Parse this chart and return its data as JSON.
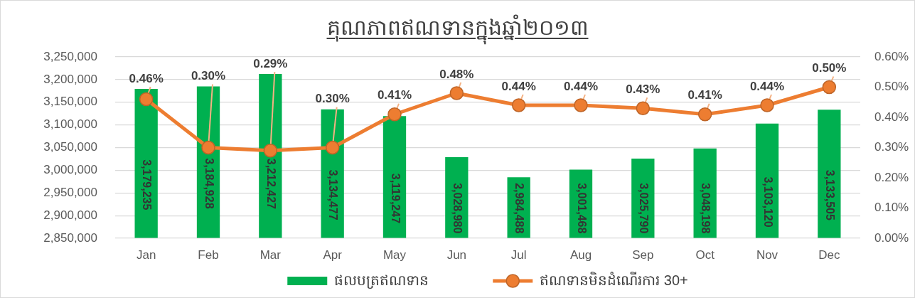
{
  "chart_data": {
    "type": "bar",
    "title": "គុណភាពឥណទានក្នុងឆ្នាំ២០១៣",
    "categories": [
      "Jan",
      "Feb",
      "Mar",
      "Apr",
      "May",
      "Jun",
      "Jul",
      "Aug",
      "Sep",
      "Oct",
      "Nov",
      "Dec"
    ],
    "series": [
      {
        "name": "ផលបត្រឥណទាន",
        "color": "#00b050",
        "values": [
          3179235,
          3184928,
          3212427,
          3134477,
          3119247,
          3028980,
          2984488,
          3001468,
          3025790,
          3048198,
          3103120,
          3133505
        ],
        "value_labels": [
          "3,179,235",
          "3,184,928",
          "3,212,427",
          "3,134,477",
          "3,119,247",
          "3,028,980",
          "2,984,488",
          "3,001,468",
          "3,025,790",
          "3,048,198",
          "3,103,120",
          "3,133,505"
        ]
      },
      {
        "name": "ឥណទានមិនដំណើរការ 30+",
        "type": "line",
        "axis": "y2",
        "color": "#ed7d31",
        "values": [
          0.46,
          0.3,
          0.29,
          0.3,
          0.41,
          0.48,
          0.44,
          0.44,
          0.43,
          0.41,
          0.44,
          0.5
        ],
        "value_labels": [
          "0.46%",
          "0.30%",
          "0.29%",
          "0.30%",
          "0.41%",
          "0.48%",
          "0.44%",
          "0.44%",
          "0.43%",
          "0.41%",
          "0.44%",
          "0.50%"
        ]
      }
    ],
    "ylim": [
      2850000,
      3250000
    ],
    "yticks": [
      {
        "value": 2850000,
        "label": "2,850,000"
      },
      {
        "value": 2900000,
        "label": "2,900,000"
      },
      {
        "value": 2950000,
        "label": "2,950,000"
      },
      {
        "value": 3000000,
        "label": "3,000,000"
      },
      {
        "value": 3050000,
        "label": "3,050,000"
      },
      {
        "value": 3100000,
        "label": "3,100,000"
      },
      {
        "value": 3150000,
        "label": "3,150,000"
      },
      {
        "value": 3200000,
        "label": "3,200,000"
      },
      {
        "value": 3250000,
        "label": "3,250,000"
      }
    ],
    "y2lim": [
      0,
      0.6
    ],
    "y2ticks": [
      {
        "value": 0,
        "label": "0.00%"
      },
      {
        "value": 0.1,
        "label": "0.10%"
      },
      {
        "value": 0.2,
        "label": "0.20%"
      },
      {
        "value": 0.3,
        "label": "0.30%"
      },
      {
        "value": 0.4,
        "label": "0.40%"
      },
      {
        "value": 0.5,
        "label": "0.50%"
      },
      {
        "value": 0.6,
        "label": "0.60%"
      }
    ],
    "grid": "y",
    "legend": "bottom",
    "marker": "circle"
  }
}
